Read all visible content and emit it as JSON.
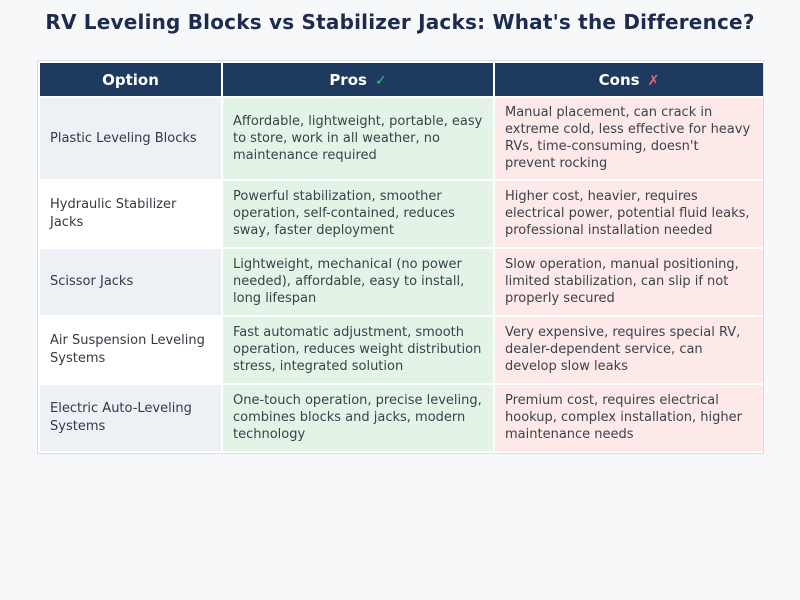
{
  "page": {
    "title": "RV Leveling Blocks vs Stabilizer Jacks: What's the Difference?"
  },
  "table": {
    "columns": [
      {
        "label": "Option",
        "icon": ""
      },
      {
        "label": "Pros",
        "icon": "✓",
        "icon_name": "check-icon"
      },
      {
        "label": "Cons",
        "icon": "✗",
        "icon_name": "cross-icon"
      }
    ],
    "rows": [
      {
        "option": "Plastic Leveling Blocks",
        "pros": "Affordable, lightweight, portable, easy to store, work in all weather, no maintenance required",
        "cons": "Manual placement, can crack in extreme cold, less effective for heavy RVs, time-consuming, doesn't prevent rocking"
      },
      {
        "option": "Hydraulic Stabilizer Jacks",
        "pros": "Powerful stabilization, smoother operation, self-contained, reduces sway, faster deployment",
        "cons": "Higher cost, heavier, requires electrical power, potential fluid leaks, professional installation needed"
      },
      {
        "option": "Scissor Jacks",
        "pros": "Lightweight, mechanical (no power needed), affordable, easy to install, long lifespan",
        "cons": "Slow operation, manual positioning, limited stabilization, can slip if not properly secured"
      },
      {
        "option": "Air Suspension Leveling Systems",
        "pros": "Fast automatic adjustment, smooth operation, reduces weight distribution stress, integrated solution",
        "cons": "Very expensive, requires special RV, dealer-dependent service, can develop slow leaks"
      },
      {
        "option": "Electric Auto-Leveling Systems",
        "pros": "One-touch operation, precise leveling, combines blocks and jacks, modern technology",
        "cons": "Premium cost, requires electrical hookup, complex installation, higher maintenance needs"
      }
    ]
  },
  "colors": {
    "page_bg": "#f6f8fa",
    "title_text": "#1d2b4e",
    "header_bg": "#1e3a5f",
    "header_text": "#ffffff",
    "option_row_alt_bg": "#edf0f5",
    "option_row_bg": "#ffffff",
    "pros_bg": "#e3f3e6",
    "cons_bg": "#fdeae8",
    "check_green": "#2ecc71",
    "cross_red": "#e8697d",
    "body_text": "#3b424b"
  }
}
